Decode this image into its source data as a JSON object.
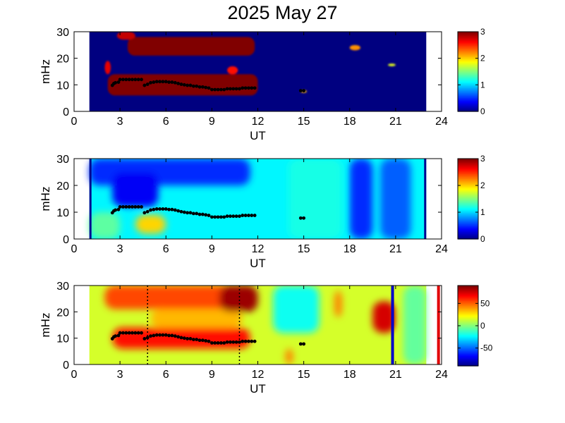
{
  "title": "2025 May 27",
  "colors": {
    "background": "#ffffff",
    "panel_fill": "#00008f",
    "axis": "#000000",
    "marker": "#000000"
  },
  "chart_data": [
    {
      "type": "heatmap",
      "panel": "top",
      "xlabel": "UT",
      "ylabel": "mHz",
      "xlim": [
        0,
        24
      ],
      "ylim": [
        0,
        30
      ],
      "xticks": [
        "0",
        "3",
        "6",
        "9",
        "12",
        "15",
        "18",
        "21",
        "24"
      ],
      "yticks": [
        "0",
        "10",
        "20",
        "30"
      ],
      "data_extent_ut": [
        1,
        23
      ],
      "colorbar": {
        "range": [
          0,
          3
        ],
        "ticks": [
          "0",
          "1",
          "2",
          "3"
        ]
      },
      "background_value": 0,
      "bands": [
        {
          "x_start": 2.2,
          "x_end": 12.0,
          "y_low": 6,
          "y_high": 14,
          "value": 3
        },
        {
          "x_start": 3.5,
          "x_end": 11.8,
          "y_low": 21,
          "y_high": 28,
          "value": 3
        },
        {
          "x_start": 2.8,
          "x_end": 4.0,
          "y_low": 27,
          "y_high": 30,
          "value": 2.8
        },
        {
          "x_start": 2.0,
          "x_end": 2.4,
          "y_low": 14,
          "y_high": 19,
          "value": 2.7
        },
        {
          "x_start": 10.0,
          "x_end": 10.7,
          "y_low": 14,
          "y_high": 17,
          "value": 2.6
        },
        {
          "x_start": 18.0,
          "x_end": 18.7,
          "y_low": 23,
          "y_high": 25,
          "value": 2.2
        },
        {
          "x_start": 14.8,
          "x_end": 15.2,
          "y_low": 7,
          "y_high": 8,
          "value": 2.1
        },
        {
          "x_start": 20.5,
          "x_end": 21.0,
          "y_low": 17,
          "y_high": 18,
          "value": 1.8
        }
      ]
    },
    {
      "type": "heatmap",
      "panel": "middle",
      "xlabel": "UT",
      "ylabel": "mHz",
      "xlim": [
        0,
        24
      ],
      "ylim": [
        0,
        30
      ],
      "xticks": [
        "0",
        "3",
        "6",
        "9",
        "12",
        "15",
        "18",
        "21",
        "24"
      ],
      "yticks": [
        "0",
        "10",
        "20",
        "30"
      ],
      "data_extent_ut": [
        1,
        23
      ],
      "colorbar": {
        "range": [
          0,
          3
        ],
        "ticks": [
          "0",
          "1",
          "2",
          "3"
        ]
      },
      "background_value": 1.1,
      "bands": [
        {
          "x_start": 1.0,
          "x_end": 11.5,
          "y_low": 20,
          "y_high": 30,
          "value": 0.5
        },
        {
          "x_start": 2.5,
          "x_end": 5.5,
          "y_low": 12,
          "y_high": 25,
          "value": 0.35
        },
        {
          "x_start": 4.0,
          "x_end": 6.0,
          "y_low": 2,
          "y_high": 9,
          "value": 2.0
        },
        {
          "x_start": 18.0,
          "x_end": 19.5,
          "y_low": 0,
          "y_high": 30,
          "value": 0.5
        },
        {
          "x_start": 20.0,
          "x_end": 22.0,
          "y_low": 0,
          "y_high": 30,
          "value": 0.65
        },
        {
          "x_start": 14.0,
          "x_end": 17.5,
          "y_low": 0,
          "y_high": 30,
          "value": 1.2
        },
        {
          "x_start": 1.0,
          "x_end": 3.0,
          "y_low": 0,
          "y_high": 10,
          "value": 1.4
        }
      ]
    },
    {
      "type": "heatmap",
      "panel": "bottom",
      "xlabel": "UT",
      "ylabel": "mHz",
      "xlim": [
        0,
        24
      ],
      "ylim": [
        0,
        30
      ],
      "xticks": [
        "0",
        "3",
        "6",
        "9",
        "12",
        "15",
        "18",
        "21",
        "24"
      ],
      "yticks": [
        "0",
        "10",
        "20",
        "30"
      ],
      "data_extent_ut": [
        1,
        23
      ],
      "colorbar": {
        "range": [
          -90,
          90
        ],
        "ticks": [
          "50",
          "0",
          "-50"
        ],
        "tick_values": [
          50,
          0,
          -50
        ]
      },
      "background_value": 15,
      "bands": [
        {
          "x_start": 2.0,
          "x_end": 12.0,
          "y_low": 21,
          "y_high": 30,
          "value": 55
        },
        {
          "x_start": 2.5,
          "x_end": 11.5,
          "y_low": 6,
          "y_high": 14,
          "value": 65
        },
        {
          "x_start": 5.0,
          "x_end": 11.0,
          "y_low": 14,
          "y_high": 21,
          "value": 35
        },
        {
          "x_start": 9.5,
          "x_end": 12.0,
          "y_low": 20,
          "y_high": 30,
          "value": 85
        },
        {
          "x_start": 13.0,
          "x_end": 16.0,
          "y_low": 12,
          "y_high": 30,
          "value": -20
        },
        {
          "x_start": 19.5,
          "x_end": 21.0,
          "y_low": 12,
          "y_high": 24,
          "value": 75
        },
        {
          "x_start": 17.0,
          "x_end": 17.5,
          "y_low": 18,
          "y_high": 28,
          "value": 45
        },
        {
          "x_start": 13.8,
          "x_end": 14.3,
          "y_low": 0,
          "y_high": 6,
          "value": 45
        },
        {
          "x_start": 21.5,
          "x_end": 23.0,
          "y_low": 0,
          "y_high": 30,
          "value": -5
        }
      ],
      "vertical_lines": [
        {
          "ut": 4.8,
          "style": "dotted",
          "color": "#000000"
        },
        {
          "ut": 10.8,
          "style": "dotted",
          "color": "#000000"
        },
        {
          "ut": 20.8,
          "style": "solid",
          "color": "#0000c8"
        },
        {
          "ut": 23.8,
          "style": "solid",
          "color": "#e00000"
        }
      ]
    }
  ],
  "peak_frequency": {
    "panels": [
      "top",
      "middle",
      "bottom"
    ],
    "ut": [
      2.5,
      2.6,
      2.7,
      2.9,
      3.0,
      3.2,
      3.4,
      3.6,
      3.8,
      4.0,
      4.2,
      4.4,
      4.6,
      4.8,
      5.0,
      5.2,
      5.4,
      5.6,
      5.8,
      6.0,
      6.2,
      6.4,
      6.6,
      6.8,
      7.0,
      7.2,
      7.4,
      7.6,
      7.8,
      8.0,
      8.2,
      8.4,
      8.6,
      8.8,
      9.0,
      9.2,
      9.4,
      9.6,
      9.8,
      10.0,
      10.2,
      10.4,
      10.6,
      10.8,
      11.0,
      11.2,
      11.4,
      11.6,
      11.8,
      14.8,
      15.0
    ],
    "mHz": [
      9.8,
      10.5,
      10.8,
      11.0,
      12.0,
      12.0,
      12.0,
      12.0,
      12.0,
      12.0,
      12.0,
      12.0,
      9.8,
      10.2,
      10.8,
      11.0,
      11.2,
      11.2,
      11.2,
      11.2,
      11.0,
      11.0,
      10.8,
      10.5,
      10.2,
      10.0,
      9.8,
      9.8,
      9.5,
      9.5,
      9.2,
      9.2,
      9.0,
      8.8,
      8.2,
      8.2,
      8.2,
      8.2,
      8.2,
      8.5,
      8.5,
      8.5,
      8.5,
      8.5,
      8.8,
      8.8,
      8.8,
      8.8,
      8.8,
      7.8,
      7.8
    ]
  }
}
